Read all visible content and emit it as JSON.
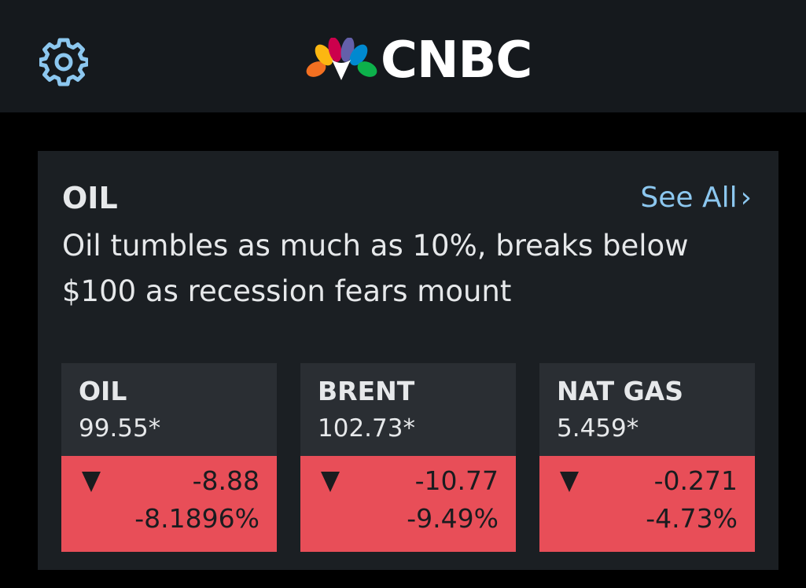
{
  "header": {
    "logo_text": "CNBC",
    "settings_icon": "gear-icon",
    "logo_icon": "nbc-peacock-icon"
  },
  "colors": {
    "header_bg": "#15191d",
    "card_bg": "#1b1f23",
    "quote_bg": "#2a2e33",
    "negative": "#e84e58",
    "link": "#8cc7ef",
    "text": "#e6e8ea"
  },
  "card": {
    "title": "OIL",
    "see_all_label": "See All",
    "see_all_icon": "chevron-right-icon",
    "headline": "Oil tumbles as much as 10%, breaks below $100 as recession fears mount"
  },
  "quotes": [
    {
      "name": "OIL",
      "price": "99.55*",
      "change": "-8.88",
      "percent": "-8.1896%",
      "direction_icon": "triangle-down-icon"
    },
    {
      "name": "BRENT",
      "price": "102.73*",
      "change": "-10.77",
      "percent": "-9.49%",
      "direction_icon": "triangle-down-icon"
    },
    {
      "name": "NAT GAS",
      "price": "5.459*",
      "change": "-0.271",
      "percent": "-4.73%",
      "direction_icon": "triangle-down-icon"
    }
  ]
}
